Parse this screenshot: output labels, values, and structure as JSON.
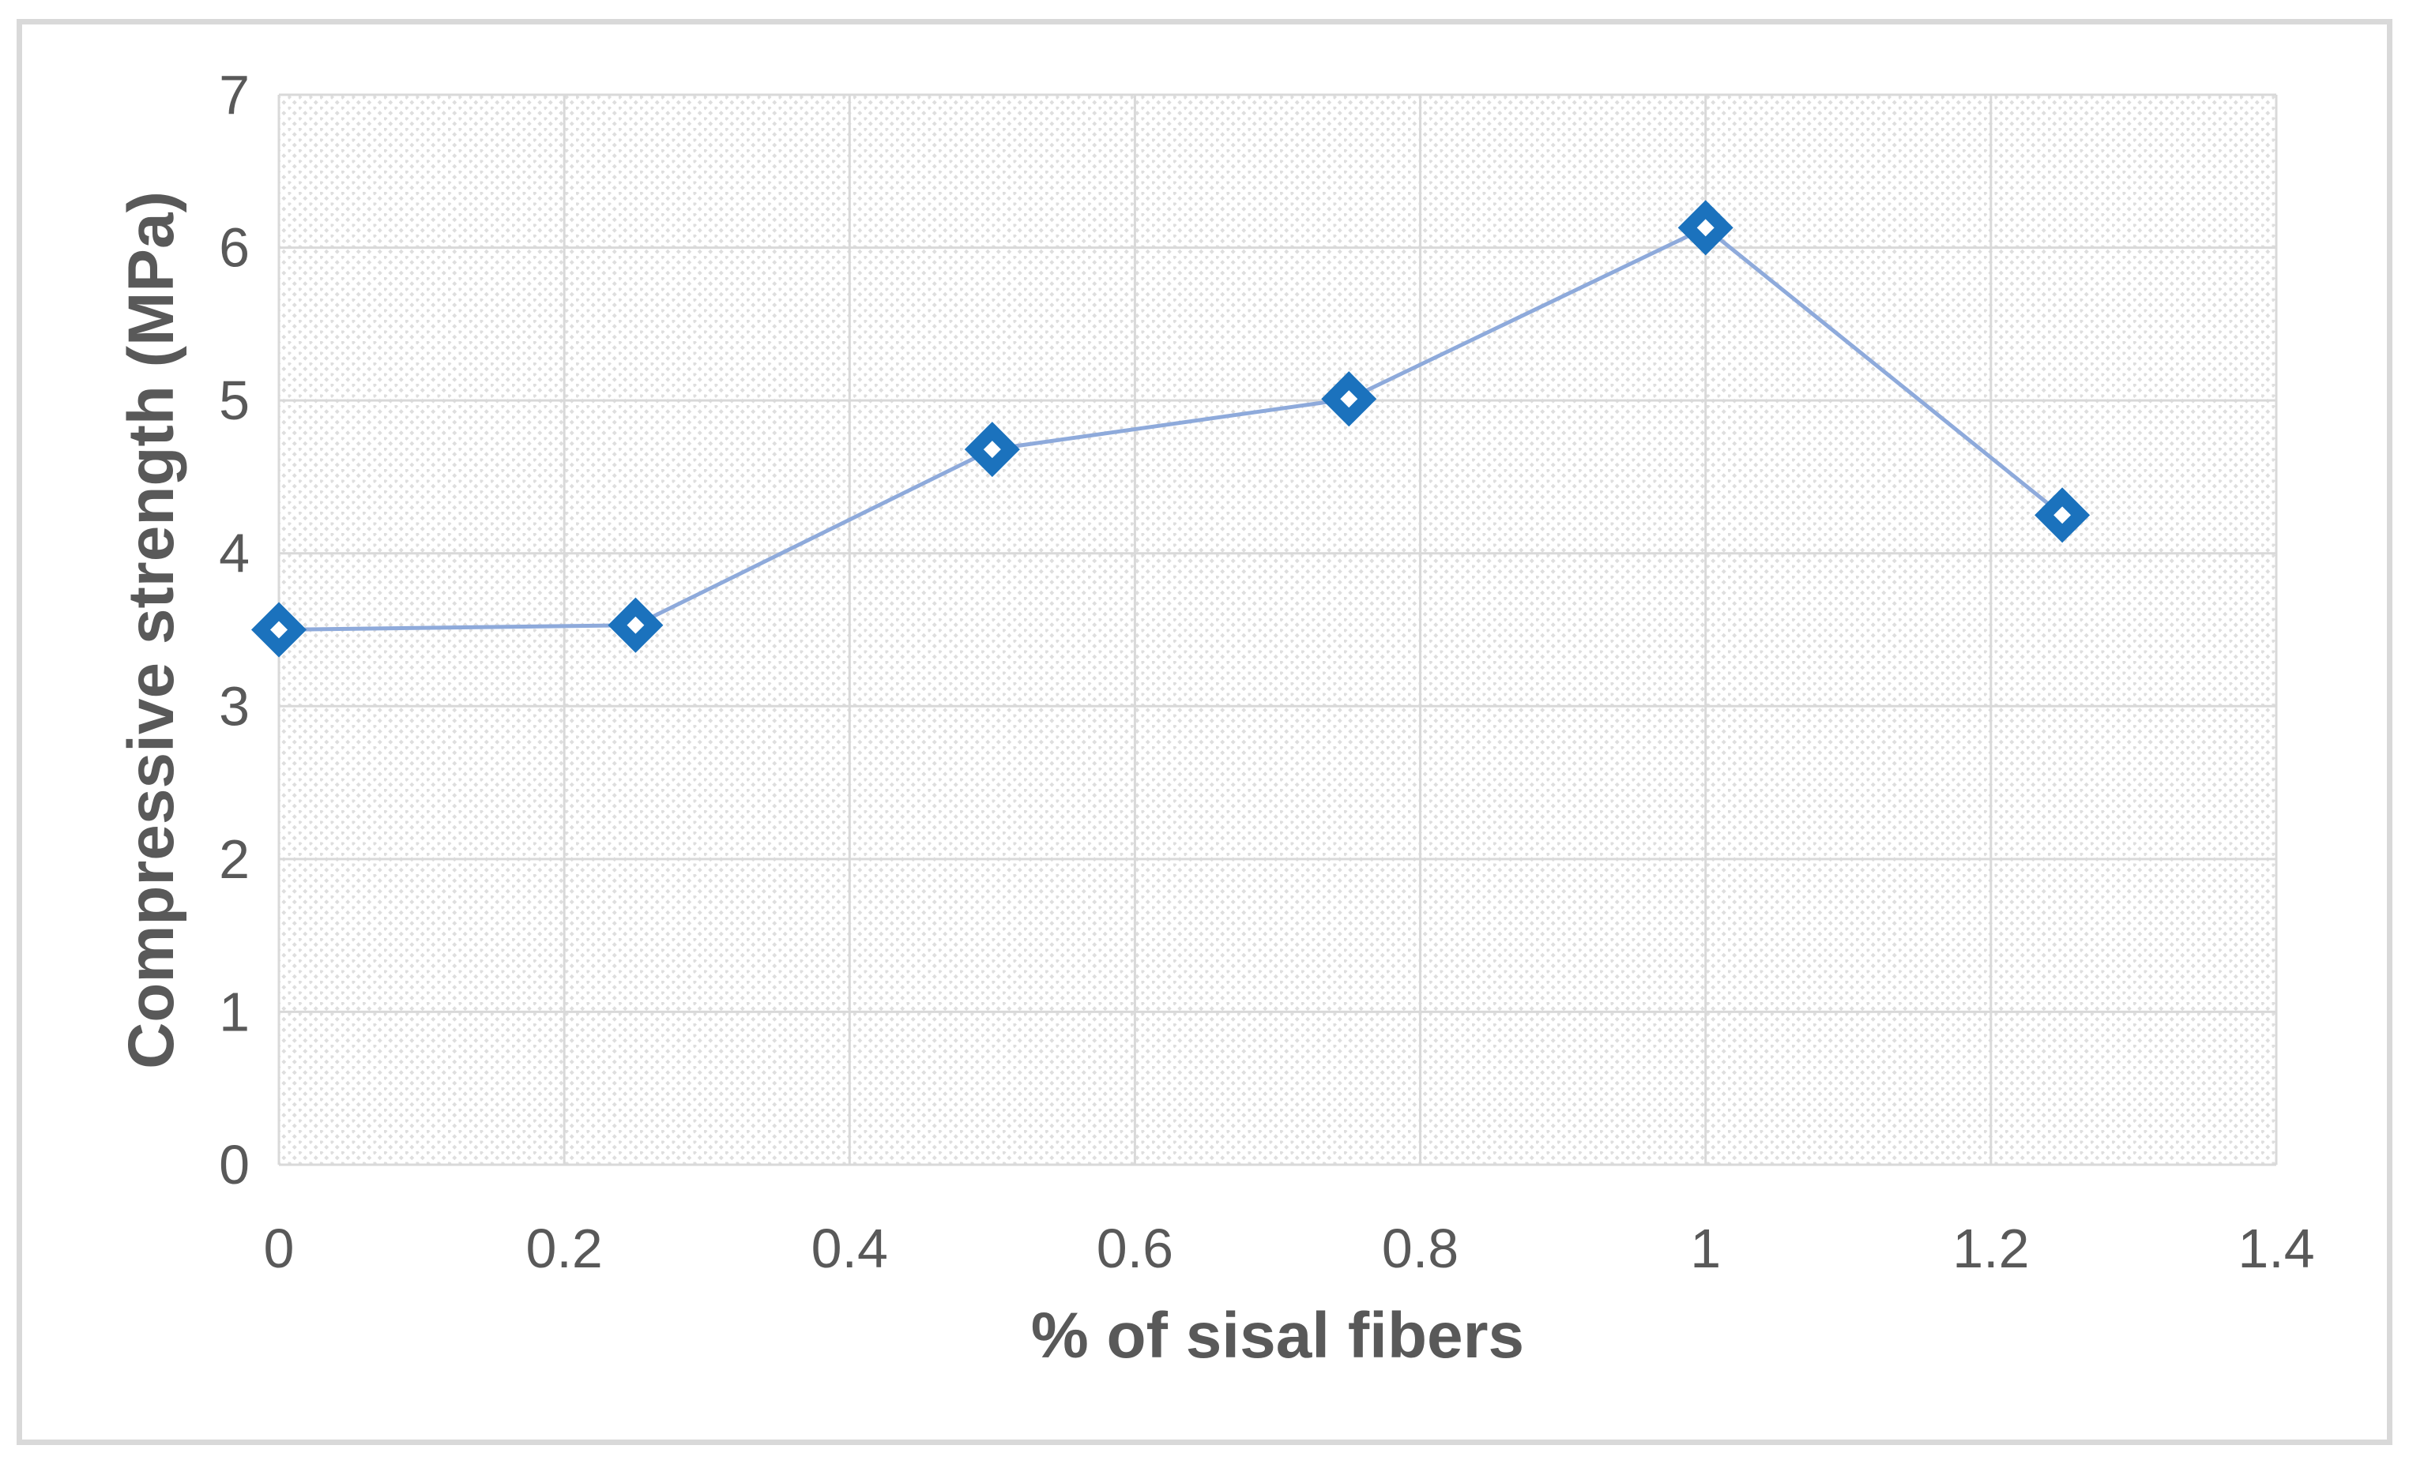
{
  "chart_data": {
    "type": "line",
    "title": "",
    "xlabel": "% of sisal fibers",
    "ylabel": "Compressive strength (MPa)",
    "x": [
      0,
      0.25,
      0.5,
      0.75,
      1,
      1.25
    ],
    "series": [
      {
        "name": "Compressive strength (MPa)",
        "values": [
          3.5,
          3.53,
          4.68,
          5.01,
          6.13,
          4.25
        ]
      }
    ],
    "xlim": [
      0,
      1.4
    ],
    "ylim": [
      0,
      7
    ],
    "x_ticks": [
      0,
      0.2,
      0.4,
      0.6,
      0.8,
      1,
      1.2,
      1.4
    ],
    "x_tick_labels": [
      "0",
      "0.2",
      "0.4",
      "0.6",
      "0.8",
      "1",
      "1.2",
      "1.4"
    ],
    "y_ticks": [
      0,
      1,
      2,
      3,
      4,
      5,
      6,
      7
    ],
    "y_tick_labels": [
      "0",
      "1",
      "2",
      "3",
      "4",
      "5",
      "6",
      "7"
    ],
    "grid": "both",
    "legend": "none",
    "marker": "open-diamond",
    "plot_area_fill": "diagonal-hatch",
    "colors": {
      "marker_stroke": "#1b72bd",
      "marker_fill": "#ffffff",
      "line": "#8eaadb",
      "gridline": "#d9d9d9",
      "hatch": "#dedede",
      "axis_text": "#595959",
      "frame_border": "#d9d9d9",
      "background": "#ffffff"
    }
  }
}
